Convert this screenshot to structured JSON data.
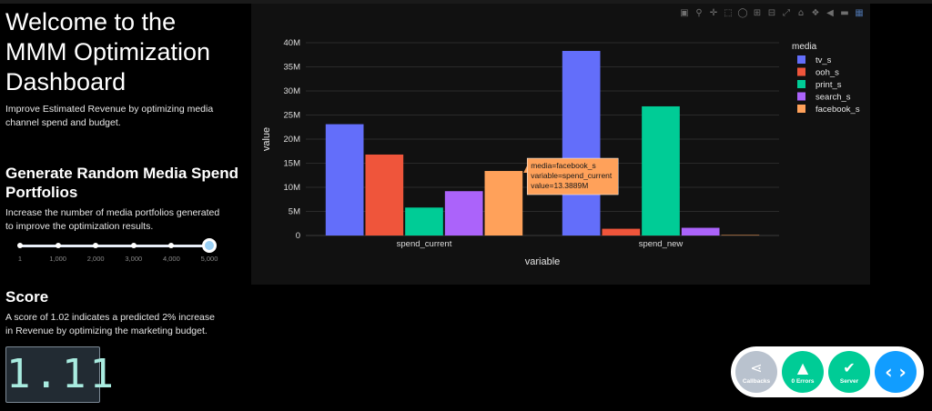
{
  "header": {
    "title": "Welcome to the MMM Optimization Dashboard",
    "description": "Improve Estimated Revenue by optimizing media channel spend and budget."
  },
  "portfolio": {
    "heading": "Generate Random Media Spend Portfolios",
    "description": "Increase the number of media portfolios generated to improve the optimization results.",
    "slider": {
      "marks": [
        "1",
        "1,000",
        "2,000",
        "3,000",
        "4,000",
        "5,000"
      ],
      "min": 1,
      "max": 5000,
      "value": 5000
    }
  },
  "score": {
    "heading": "Score",
    "description": "A score of 1.02 indicates a predicted 2% increase in Revenue by optimizing the marketing budget.",
    "value": "1.11"
  },
  "modebar": {
    "icons": [
      "camera-icon",
      "zoom-icon",
      "pan-icon",
      "box-select-icon",
      "lasso-icon",
      "zoom-in-icon",
      "zoom-out-icon",
      "autoscale-icon",
      "home-icon",
      "spike-lines-icon",
      "hover-closest-icon",
      "hover-compare-icon",
      "plotly-logo-icon"
    ]
  },
  "chart_data": {
    "type": "bar",
    "categories": [
      "spend_current",
      "spend_new"
    ],
    "series": [
      {
        "name": "tv_s",
        "values": [
          23.1,
          38.3
        ]
      },
      {
        "name": "ooh_s",
        "values": [
          16.8,
          1.4
        ]
      },
      {
        "name": "print_s",
        "values": [
          5.8,
          26.8
        ]
      },
      {
        "name": "search_s",
        "values": [
          9.2,
          1.6
        ]
      },
      {
        "name": "facebook_s",
        "values": [
          13.3889,
          0.1
        ]
      }
    ],
    "colors": [
      "#636efa",
      "#ef553b",
      "#00cc96",
      "#ab63fa",
      "#ffa15a"
    ],
    "xlabel": "variable",
    "ylabel": "value",
    "ylim": [
      0,
      40
    ],
    "yticks": [
      "0",
      "5M",
      "10M",
      "15M",
      "20M",
      "25M",
      "30M",
      "35M",
      "40M"
    ],
    "legend_title": "media",
    "legend_position": "top-right",
    "grid": true,
    "tooltip": {
      "lines": [
        "media=facebook_s",
        "variable=spend_current",
        "value=13.3889M"
      ]
    }
  },
  "debug_menu": {
    "buttons": [
      {
        "label": "Callbacks",
        "color": "#b9c2ce"
      },
      {
        "label": "0 Errors",
        "color": "#00cc96"
      },
      {
        "label": "Server",
        "color": "#00cc96"
      },
      {
        "label": "",
        "color": "#119dff"
      }
    ]
  }
}
